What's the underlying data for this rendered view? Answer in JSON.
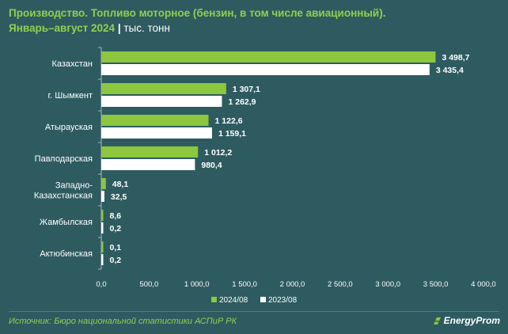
{
  "header": {
    "title_line1": "Производство. Топливо моторное (бензин, в том числе авиационный).",
    "title_period": "Январь–август 2024",
    "title_separator": "|",
    "title_unit": "тыс. тонн"
  },
  "footer": {
    "source": "Источник: Бюро национальной статистики АСПиР РК",
    "logo_text": "EnergyProm"
  },
  "colors": {
    "series_2024": "#8dc63f",
    "series_2023": "#ffffff",
    "title": "#8fd14f",
    "background": "#2e5b60"
  },
  "chart_data": {
    "type": "bar",
    "orientation": "horizontal",
    "title": "Производство. Топливо моторное (бензин, в том числе авиационный). Январь–август 2024",
    "unit": "тыс. тонн",
    "categories": [
      [
        "Казахстан"
      ],
      [
        "г. Шымкент"
      ],
      [
        "Атырауская"
      ],
      [
        "Павлодарская"
      ],
      [
        "Западно-",
        "Казахстанская"
      ],
      [
        "Жамбылская"
      ],
      [
        "Актюбинская"
      ]
    ],
    "series": [
      {
        "name": "2024/08",
        "values": [
          3498.7,
          1307.1,
          1122.6,
          1012.2,
          48.1,
          8.6,
          0.1
        ],
        "labels": [
          "3 498,7",
          "1 307,1",
          "1 122,6",
          "1 012,2",
          "48,1",
          "8,6",
          "0,1"
        ]
      },
      {
        "name": "2023/08",
        "values": [
          3435.4,
          1262.9,
          1159.1,
          980.4,
          32.5,
          0.2,
          0.2
        ],
        "labels": [
          "3 435,4",
          "1 262,9",
          "1 159,1",
          "980,4",
          "32,5",
          "0,2",
          "0,2"
        ]
      }
    ],
    "xlim": [
      0,
      4000
    ],
    "xticks": [
      0,
      500,
      1000,
      1500,
      2000,
      2500,
      3000,
      3500,
      4000
    ],
    "xtick_labels": [
      "0,0",
      "500,0",
      "1 000,0",
      "1 500,0",
      "2 000,0",
      "2 500,0",
      "3 000,0",
      "3 500,0",
      "4 000,0"
    ],
    "grid": false,
    "legend_position": "bottom-center"
  }
}
